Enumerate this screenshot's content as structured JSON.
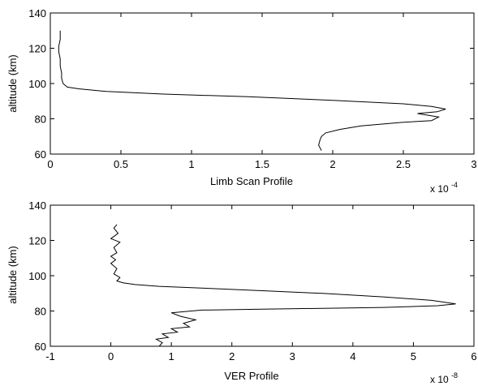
{
  "chart_data": [
    {
      "type": "line",
      "title": "",
      "xlabel": "Limb Scan Profile",
      "ylabel": "altitude (km)",
      "x_multiplier": "x 10",
      "x_exponent": "-4",
      "xlim": [
        0,
        3
      ],
      "ylim": [
        60,
        140
      ],
      "xticks": [
        0,
        0.5,
        1,
        1.5,
        2,
        2.5,
        3
      ],
      "xtick_labels": [
        "0",
        "0.5",
        "1",
        "1.5",
        "2",
        "2.5",
        "3"
      ],
      "yticks": [
        60,
        80,
        100,
        120,
        140
      ],
      "ytick_labels": [
        "60",
        "80",
        "100",
        "120",
        "140"
      ],
      "grid": false,
      "series": [
        {
          "color": "#000000",
          "x": [
            0.07,
            0.07,
            0.06,
            0.06,
            0.07,
            0.07,
            0.08,
            0.08,
            0.09,
            0.12,
            0.2,
            0.4,
            0.8,
            1.4,
            2.0,
            2.5,
            2.7,
            2.8,
            2.74,
            2.6,
            2.75,
            2.7,
            2.5,
            2.2,
            2.05,
            1.95,
            1.92,
            1.91,
            1.9,
            1.92
          ],
          "y": [
            130,
            125,
            121,
            118,
            114,
            110,
            106,
            103,
            100,
            98,
            97,
            95.5,
            94,
            92.5,
            90.5,
            88.5,
            87,
            85.5,
            84,
            83,
            81,
            79,
            78,
            76,
            74,
            72,
            70,
            68,
            65,
            62
          ]
        }
      ]
    },
    {
      "type": "line",
      "title": "",
      "xlabel": "VER Profile",
      "ylabel": "altitude (km)",
      "x_multiplier": "x 10",
      "x_exponent": "-8",
      "xlim": [
        -1,
        6
      ],
      "ylim": [
        60,
        140
      ],
      "xticks": [
        -1,
        0,
        1,
        2,
        3,
        4,
        5,
        6
      ],
      "xtick_labels": [
        "-1",
        "0",
        "1",
        "2",
        "3",
        "4",
        "5",
        "6"
      ],
      "yticks": [
        60,
        80,
        100,
        120,
        140
      ],
      "ytick_labels": [
        "60",
        "80",
        "100",
        "120",
        "140"
      ],
      "grid": false,
      "series": [
        {
          "color": "#000000",
          "x": [
            0.1,
            0.05,
            0.12,
            0.0,
            0.15,
            0.05,
            0.1,
            0.0,
            0.08,
            0.0,
            0.1,
            0.05,
            0.15,
            0.1,
            0.2,
            0.4,
            0.8,
            1.5,
            2.5,
            3.5,
            4.5,
            5.3,
            5.7,
            5.4,
            4.5,
            3.5,
            2.5,
            1.5,
            1.0,
            1.15,
            1.4,
            1.2,
            1.3,
            1.0,
            1.1,
            0.85,
            0.95,
            0.75,
            0.85,
            0.8
          ],
          "y": [
            129,
            127,
            124,
            121,
            119,
            116,
            113,
            111,
            109,
            107,
            104,
            101,
            99,
            97,
            96,
            95,
            94,
            93,
            91.5,
            90,
            88,
            86,
            84,
            83,
            82,
            81.5,
            81,
            80.5,
            79,
            77,
            75,
            73,
            71,
            70,
            68,
            67,
            65,
            64,
            62,
            60
          ]
        }
      ]
    }
  ]
}
